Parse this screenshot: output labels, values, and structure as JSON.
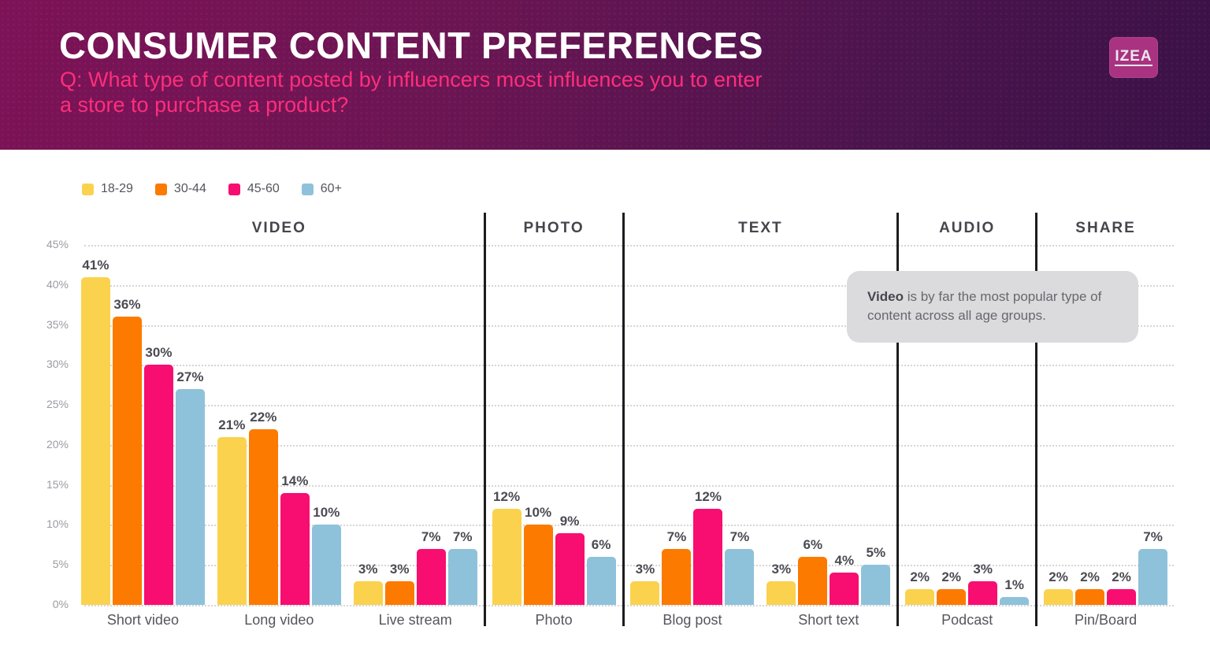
{
  "header": {
    "title": "CONSUMER CONTENT PREFERENCES",
    "question": "Q: What type of content posted by influencers most influences you to enter a store to purchase a product?",
    "question_color": "#ff2e7b",
    "gradient": [
      "#7d1257",
      "#3a1147"
    ],
    "logo_text": "IZEA",
    "logo_bg": "#a93380"
  },
  "chart_data": {
    "type": "bar",
    "unit": "%",
    "ylim": [
      0,
      45
    ],
    "ytick_step": 5,
    "grid": "horizontal-dotted",
    "legend_position": "top-left",
    "categories": [
      "Short video",
      "Long video",
      "Live stream",
      "Photo",
      "Blog post",
      "Short text",
      "Podcast",
      "Pin/Board"
    ],
    "sections": [
      {
        "label": "VIDEO",
        "category_indexes": [
          0,
          1,
          2
        ]
      },
      {
        "label": "PHOTO",
        "category_indexes": [
          3
        ]
      },
      {
        "label": "TEXT",
        "category_indexes": [
          4,
          5
        ]
      },
      {
        "label": "AUDIO",
        "category_indexes": [
          6
        ]
      },
      {
        "label": "SHARE",
        "category_indexes": [
          7
        ]
      }
    ],
    "series": [
      {
        "name": "18-29",
        "color": "#fbd24e",
        "values": [
          41,
          21,
          3,
          12,
          3,
          3,
          2,
          2
        ]
      },
      {
        "name": "30-44",
        "color": "#fc7a00",
        "values": [
          36,
          22,
          3,
          10,
          7,
          6,
          2,
          2
        ]
      },
      {
        "name": "45-60",
        "color": "#f80d70",
        "values": [
          30,
          14,
          7,
          9,
          12,
          4,
          3,
          2
        ]
      },
      {
        "name": "60+",
        "color": "#8ec2da",
        "values": [
          27,
          10,
          7,
          6,
          7,
          5,
          1,
          7
        ]
      }
    ],
    "annotation": {
      "bold": "Video",
      "rest": " is by far the most popular type of content across all age groups."
    }
  }
}
